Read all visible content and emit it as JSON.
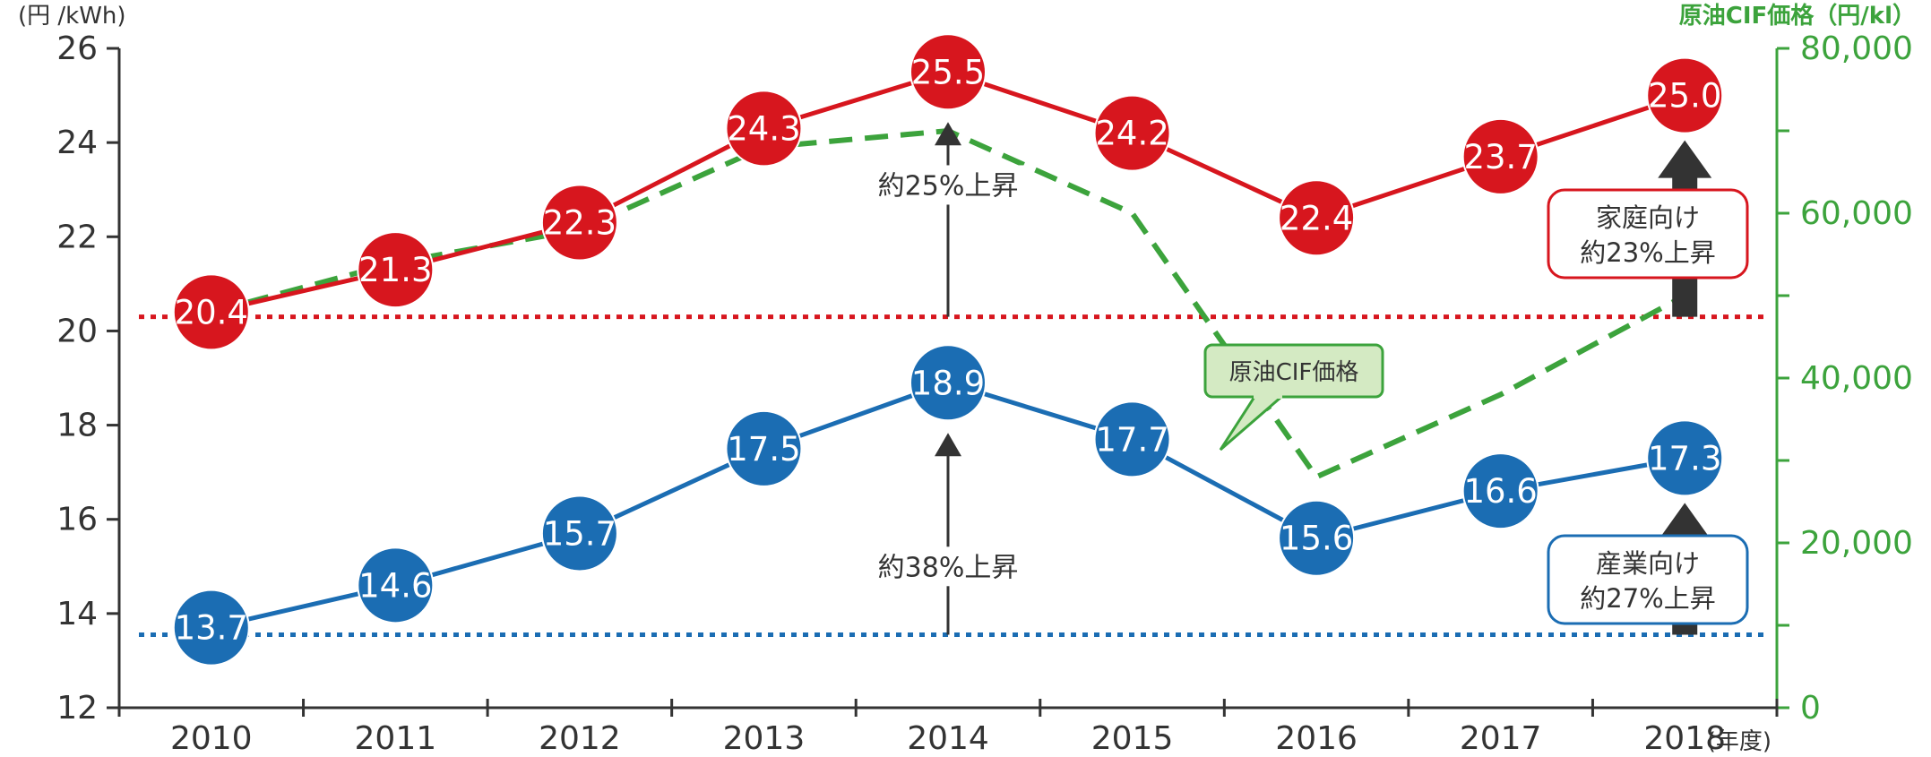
{
  "chart_data": {
    "type": "line",
    "categories": [
      "2010",
      "2011",
      "2012",
      "2013",
      "2014",
      "2015",
      "2016",
      "2017",
      "2018"
    ],
    "x_unit_label": "(年度)",
    "y_axis": {
      "unit_label": "(円 /kWh)",
      "ticks": [
        "12",
        "14",
        "16",
        "18",
        "20",
        "22",
        "24",
        "26"
      ],
      "ylim": [
        12,
        26
      ]
    },
    "y2_axis": {
      "unit_label": "原油CIF価格（円/kl）",
      "ticks": [
        "0",
        "20,000",
        "40,000",
        "60,000",
        "80,000"
      ],
      "ylim": [
        0,
        80000
      ]
    },
    "series": [
      {
        "name": "家庭向け",
        "color": "#d7161e",
        "axis": "left",
        "values": [
          20.4,
          21.3,
          22.3,
          24.3,
          25.5,
          24.2,
          22.4,
          23.7,
          25.0
        ],
        "labels": [
          "20.4",
          "21.3",
          "22.3",
          "24.3",
          "25.5",
          "24.2",
          "22.4",
          "23.7",
          "25.0"
        ]
      },
      {
        "name": "産業向け",
        "color": "#1b6db3",
        "axis": "left",
        "values": [
          13.7,
          14.6,
          15.7,
          17.5,
          18.9,
          17.7,
          15.6,
          16.6,
          17.3
        ],
        "labels": [
          "13.7",
          "14.6",
          "15.7",
          "17.5",
          "18.9",
          "17.7",
          "15.6",
          "16.6",
          "17.3"
        ]
      },
      {
        "name": "原油CIF価格",
        "color": "#3ca33c",
        "axis": "right",
        "style": "dashed",
        "values": [
          48000,
          54000,
          58000,
          68000,
          70000,
          60000,
          28000,
          38000,
          50000
        ]
      }
    ],
    "reference_lines": [
      {
        "series": "家庭向け",
        "value": 20.3,
        "color": "#d7161e",
        "style": "dotted"
      },
      {
        "series": "産業向け",
        "value": 13.55,
        "color": "#1b6db3",
        "style": "dotted"
      }
    ],
    "annotations": {
      "residential_2014": "約25%上昇",
      "industrial_2014": "約38%上昇",
      "crude_tag": "原油CIF価格",
      "residential_box": [
        "家庭向け",
        "約23%上昇"
      ],
      "industrial_box": [
        "産業向け",
        "約27%上昇"
      ]
    },
    "grid": false
  }
}
